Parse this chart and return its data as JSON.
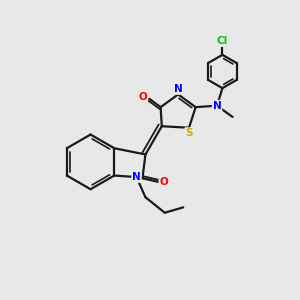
{
  "bg_color": "#e8e8e8",
  "bond_color": "#1a1a1a",
  "atom_colors": {
    "N": "#0000ff",
    "O": "#ff0000",
    "S": "#ccaa00",
    "Cl": "#00cc00",
    "C": "#1a1a1a"
  }
}
